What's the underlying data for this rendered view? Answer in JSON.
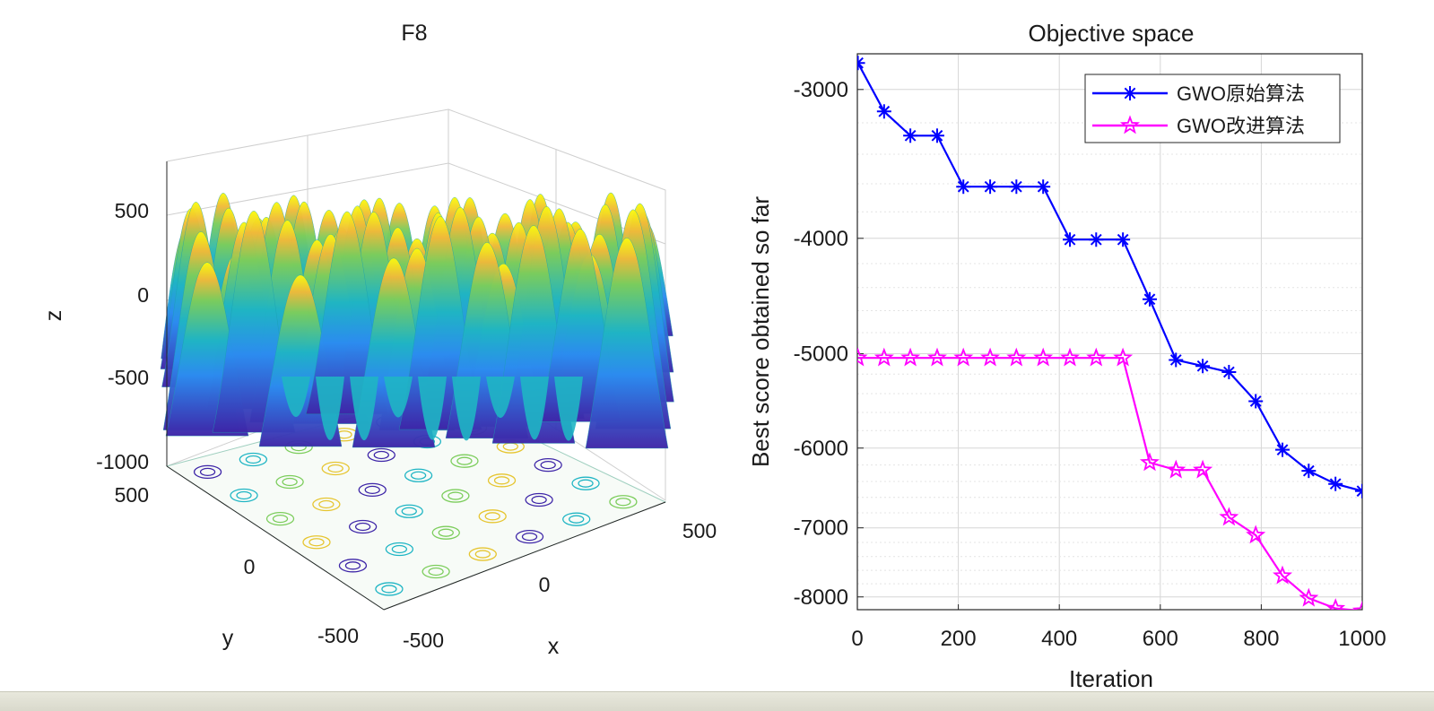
{
  "colors": {
    "gwo_original": "#0000ff",
    "gwo_improved": "#ff00ff",
    "surface_low": "#3e26a8",
    "surface_mid": "#1fb5c4",
    "surface_high": "#f9fb0e"
  },
  "chart_data": [
    {
      "type": "surface3d",
      "title": "F8",
      "xlabel": "x",
      "ylabel": "y",
      "zlabel": "z",
      "xlim": [
        -500,
        500
      ],
      "ylim": [
        -500,
        500
      ],
      "zlim": [
        -1000,
        800
      ],
      "x_ticks": [
        "-500",
        "0",
        "500"
      ],
      "y_ticks": [
        "-500",
        "0",
        "500"
      ],
      "z_ticks": [
        "-1000",
        "-500",
        "0",
        "500"
      ],
      "grid": true
    },
    {
      "type": "line",
      "title": "Objective space",
      "xlabel": "Iteration",
      "ylabel": "Best score obtained so far",
      "xlim": [
        0,
        1000
      ],
      "ylim": [
        -8200,
        -2800
      ],
      "yscale": "log-magnitude",
      "x_ticks": [
        "0",
        "200",
        "400",
        "600",
        "800",
        "1000"
      ],
      "y_ticks": [
        "-3000",
        "-4000",
        "-5000",
        "-6000",
        "-7000",
        "-8000"
      ],
      "legend_position": "top-right",
      "grid": true,
      "series": [
        {
          "name": "GWO原始算法",
          "marker": "asterisk",
          "x": [
            1,
            53,
            105,
            158,
            210,
            263,
            315,
            368,
            421,
            473,
            526,
            579,
            631,
            684,
            736,
            789,
            842,
            894,
            947,
            1000
          ],
          "y": [
            -2850,
            -3130,
            -3280,
            -3280,
            -3620,
            -3620,
            -3620,
            -3620,
            -4010,
            -4010,
            -4010,
            -4500,
            -5060,
            -5120,
            -5180,
            -5480,
            -6020,
            -6270,
            -6430,
            -6520
          ]
        },
        {
          "name": "GWO改进算法",
          "marker": "pentagram",
          "x": [
            1,
            53,
            105,
            158,
            210,
            263,
            315,
            368,
            421,
            473,
            526,
            579,
            631,
            684,
            736,
            789,
            842,
            894,
            947,
            1000
          ],
          "y": [
            -5040,
            -5040,
            -5040,
            -5040,
            -5040,
            -5040,
            -5040,
            -5040,
            -5040,
            -5040,
            -5040,
            -6170,
            -6260,
            -6260,
            -6860,
            -7100,
            -7680,
            -8020,
            -8180,
            -8220
          ]
        }
      ]
    }
  ]
}
